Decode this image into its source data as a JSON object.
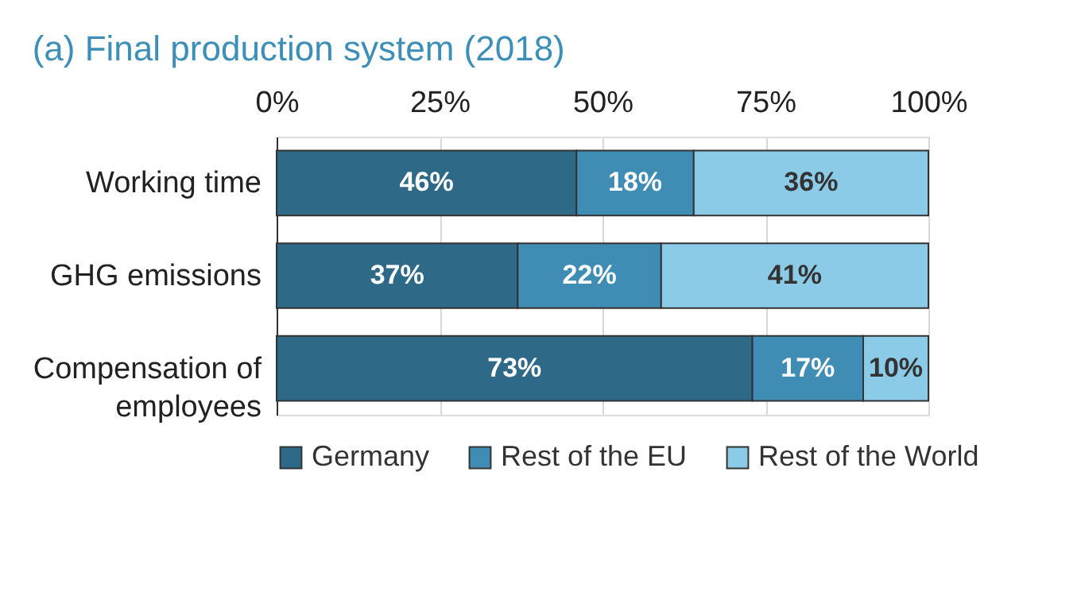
{
  "chart_data": {
    "type": "bar",
    "orientation": "horizontal",
    "stacked": true,
    "title": "(a) Final production system (2018)",
    "categories": [
      "Working time",
      "GHG emissions",
      "Compensation of employees"
    ],
    "series": [
      {
        "name": "Germany",
        "color": "#2e6a87",
        "values": [
          46,
          37,
          73
        ],
        "value_labels": [
          "46%",
          "37%",
          "73%"
        ]
      },
      {
        "name": "Rest of the EU",
        "color": "#3f8db5",
        "values": [
          18,
          22,
          17
        ],
        "value_labels": [
          "18%",
          "22%",
          "17%"
        ]
      },
      {
        "name": "Rest of the World",
        "color": "#8ccbe8",
        "values": [
          36,
          41,
          10
        ],
        "value_labels": [
          "36%",
          "41%",
          "10%"
        ]
      }
    ],
    "xlim": [
      0,
      100
    ],
    "xticks": [
      {
        "value": 0,
        "label": "0%"
      },
      {
        "value": 25,
        "label": "25%"
      },
      {
        "value": 50,
        "label": "50%"
      },
      {
        "value": 75,
        "label": "75%"
      },
      {
        "value": 100,
        "label": "100%"
      }
    ],
    "grid": "x",
    "legend": "bottom"
  }
}
